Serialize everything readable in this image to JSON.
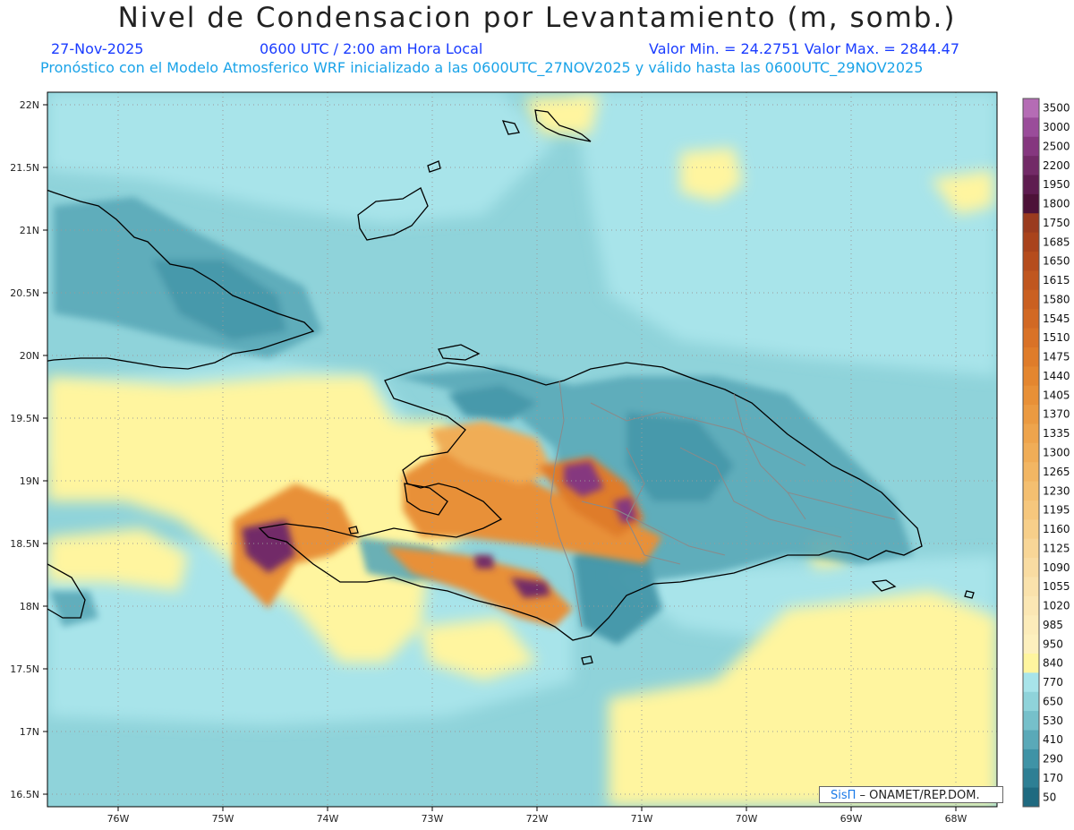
{
  "header": {
    "title": "Nivel de Condensacion por Levantamiento (m, somb.)",
    "date": "27-Nov-2025",
    "time": "0600 UTC / 2:00 am Hora Local",
    "min_max": "Valor Min. = 24.2751   Valor Max. = 2844.47",
    "model_info": "Pronóstico con el Modelo Atmosferico WRF inicializado a las 0600UTC_27NOV2025 y válido hasta las  0600UTC_29NOV2025"
  },
  "map": {
    "lat_labels": [
      "22N",
      "21.5N",
      "21N",
      "20.5N",
      "20N",
      "19.5N",
      "19N",
      "18.5N",
      "18N",
      "17.5N",
      "17N",
      "16.5N"
    ],
    "lon_labels": [
      "76W",
      "75W",
      "74W",
      "73W",
      "72W",
      "71W",
      "70W",
      "69W",
      "68W"
    ],
    "credit_logo": "SisΠ",
    "credit_text": " – ONAMET/REP.DOM."
  },
  "colorbar": {
    "labels": [
      "3500",
      "3000",
      "2500",
      "2200",
      "1950",
      "1800",
      "1750",
      "1685",
      "1650",
      "1615",
      "1580",
      "1545",
      "1510",
      "1475",
      "1440",
      "1405",
      "1370",
      "1335",
      "1300",
      "1265",
      "1230",
      "1195",
      "1160",
      "1125",
      "1090",
      "1055",
      "1020",
      "985",
      "950",
      "840",
      "770",
      "650",
      "530",
      "410",
      "290",
      "170",
      "50"
    ],
    "colors": [
      "#b56cb5",
      "#9a4c9a",
      "#85377f",
      "#722a67",
      "#5e1c50",
      "#4d1238",
      "#9a3b1f",
      "#a9431c",
      "#b54c1d",
      "#c0561f",
      "#ca6021",
      "#d26924",
      "#d97227",
      "#df7c2a",
      "#e4862f",
      "#e89037",
      "#eb9a41",
      "#ee a44c",
      "#f0ad57",
      "#f2b663",
      "#f4bf70",
      "#f6c77d",
      "#f7cf8a",
      "#f8d697",
      "#f9dca2",
      "#fae2ac",
      "#fbe7b4",
      "#fcecba",
      "#fdf0be",
      "#fff59f",
      "#a8e4ea",
      "#8fd3da",
      "#76c0ca",
      "#5aa9b8",
      "#3f93a6",
      "#2e7f94",
      "#1f6a80"
    ]
  }
}
